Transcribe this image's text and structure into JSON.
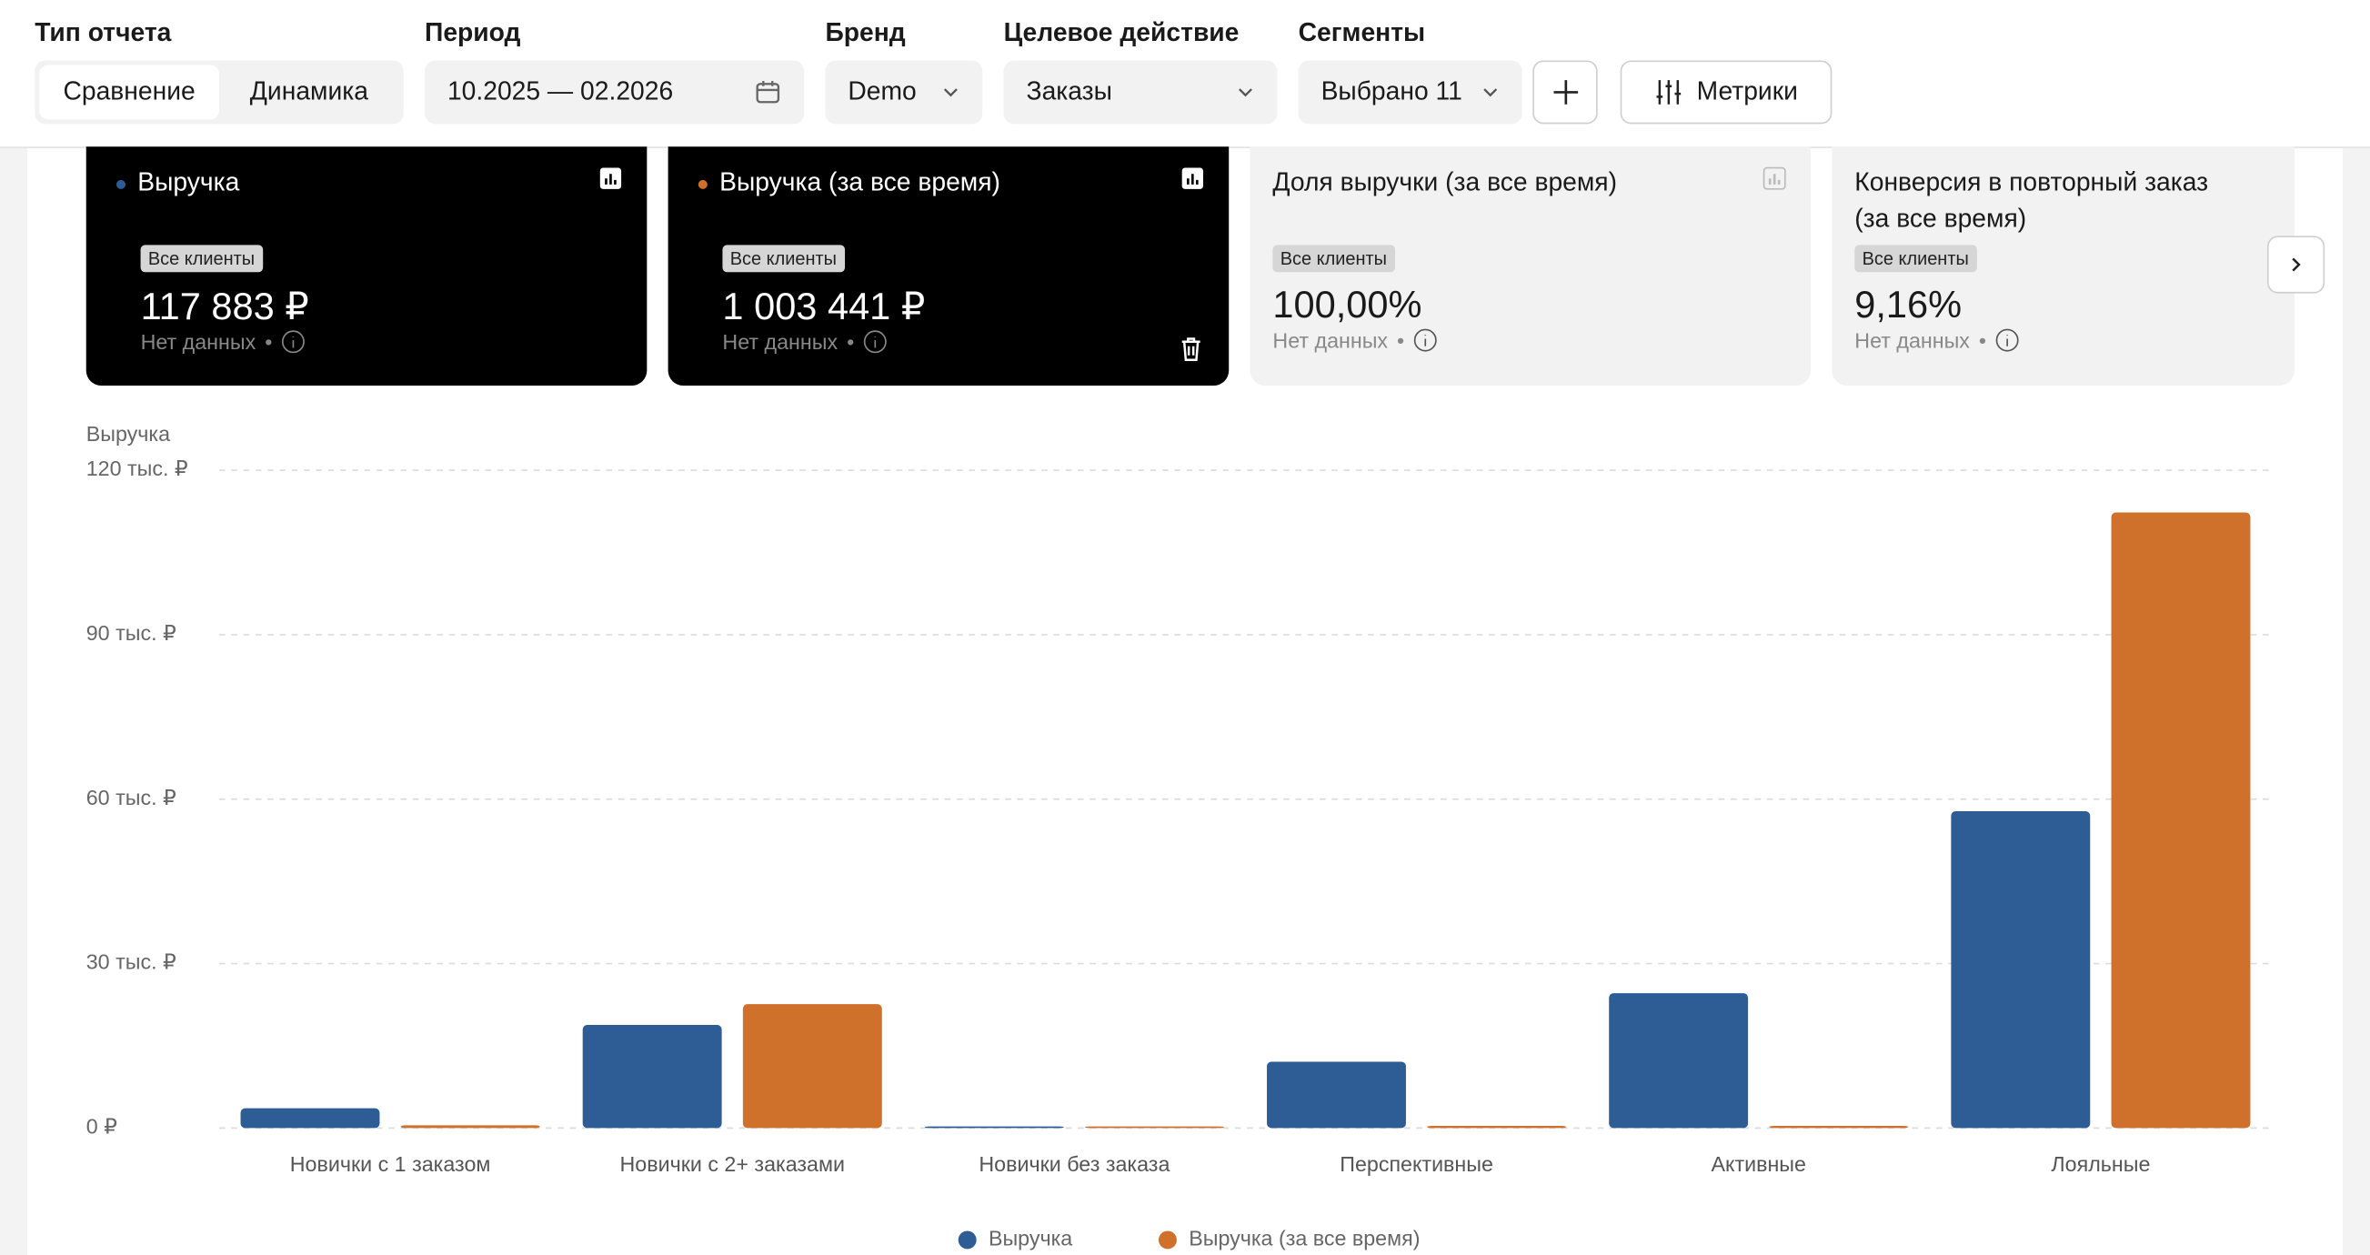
{
  "header": {
    "report_type": {
      "label": "Тип отчета",
      "options": [
        "Сравнение",
        "Динамика"
      ]
    },
    "period": {
      "label": "Период",
      "value": "10.2025 — 02.2026"
    },
    "brand": {
      "label": "Бренд",
      "value": "Demo"
    },
    "target_action": {
      "label": "Целевое действие",
      "value": "Заказы"
    },
    "segments": {
      "label": "Сегменты",
      "value": "Выбрано 11"
    },
    "metrics_button": "Метрики"
  },
  "cards": [
    {
      "title": "Выручка",
      "segment": "Все клиенты",
      "value": "117 883 ₽",
      "note": "Нет данных"
    },
    {
      "title": "Выручка (за все время)",
      "segment": "Все клиенты",
      "value": "1 003 441 ₽",
      "note": "Нет данных"
    },
    {
      "title": "Доля выручки (за все время)",
      "segment": "Все клиенты",
      "value": "100,00%",
      "note": "Нет данных"
    },
    {
      "title": "Конверсия в повторный заказ (за все время)",
      "segment": "Все клиенты",
      "value": "9,16%",
      "note": "Нет данных"
    }
  ],
  "chart_data": {
    "type": "bar",
    "y_label": "Выручка",
    "categories": [
      "Новички с 1 заказом",
      "Новички с 2+ заказами",
      "Новички без заказа",
      "Перспективные",
      "Активные",
      "Лояльные"
    ],
    "series": [
      {
        "name": "Выручка",
        "color": "#2e5c94",
        "values": [
          3600,
          18800,
          300,
          12100,
          24600,
          57800
        ]
      },
      {
        "name": "Выручка (за все время)",
        "color": "#d0712b",
        "values": [
          500,
          22600,
          300,
          400,
          400,
          112300
        ]
      }
    ],
    "ylim": [
      0,
      120000
    ],
    "yticks": [
      {
        "value": 0,
        "label": "0 ₽"
      },
      {
        "value": 30000,
        "label": "30 тыс. ₽"
      },
      {
        "value": 60000,
        "label": "60 тыс. ₽"
      },
      {
        "value": 90000,
        "label": "90 тыс. ₽"
      },
      {
        "value": 120000,
        "label": "120 тыс. ₽"
      }
    ],
    "grid": true
  }
}
